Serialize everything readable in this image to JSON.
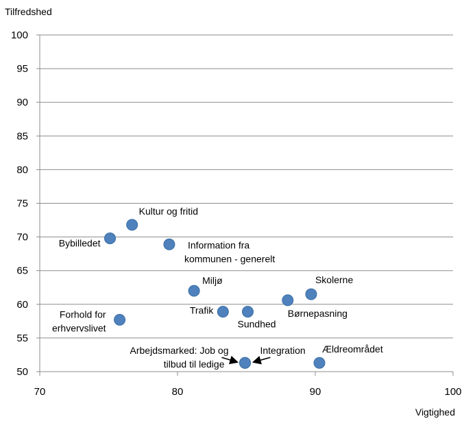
{
  "chart_data": {
    "type": "scatter",
    "title": "",
    "xlabel": "Vigtighed",
    "ylabel": "Tilfredshed",
    "xlim": [
      70,
      100
    ],
    "ylim": [
      50,
      100
    ],
    "x_ticks": [
      70,
      80,
      90,
      100
    ],
    "y_ticks": [
      50,
      55,
      60,
      65,
      70,
      75,
      80,
      85,
      90,
      95,
      100
    ],
    "grid": "horizontal",
    "legend": "none",
    "marker_color": "#4f81bd",
    "points": [
      {
        "label": "Kultur og fritid",
        "x": 76.7,
        "y": 71.8
      },
      {
        "label": "Bybilledet",
        "x": 75.1,
        "y": 69.8
      },
      {
        "label": "Information fra kommunen - generelt",
        "x": 79.4,
        "y": 68.9
      },
      {
        "label": "Miljø",
        "x": 81.2,
        "y": 62.0
      },
      {
        "label": "Skolerne",
        "x": 89.7,
        "y": 61.5
      },
      {
        "label": "Børnepasning",
        "x": 88.0,
        "y": 60.6
      },
      {
        "label": "Trafik",
        "x": 83.3,
        "y": 58.9
      },
      {
        "label": "Sundhed",
        "x": 85.1,
        "y": 58.9
      },
      {
        "label": "Forhold for erhvervslivet",
        "x": 75.8,
        "y": 57.7
      },
      {
        "label": "Arbejdsmarked: Job og tilbud til ledige",
        "x": 84.9,
        "y": 51.3
      },
      {
        "label": "Integration",
        "x": 84.9,
        "y": 51.3
      },
      {
        "label": "Ældreområdet",
        "x": 90.3,
        "y": 51.3
      }
    ]
  }
}
